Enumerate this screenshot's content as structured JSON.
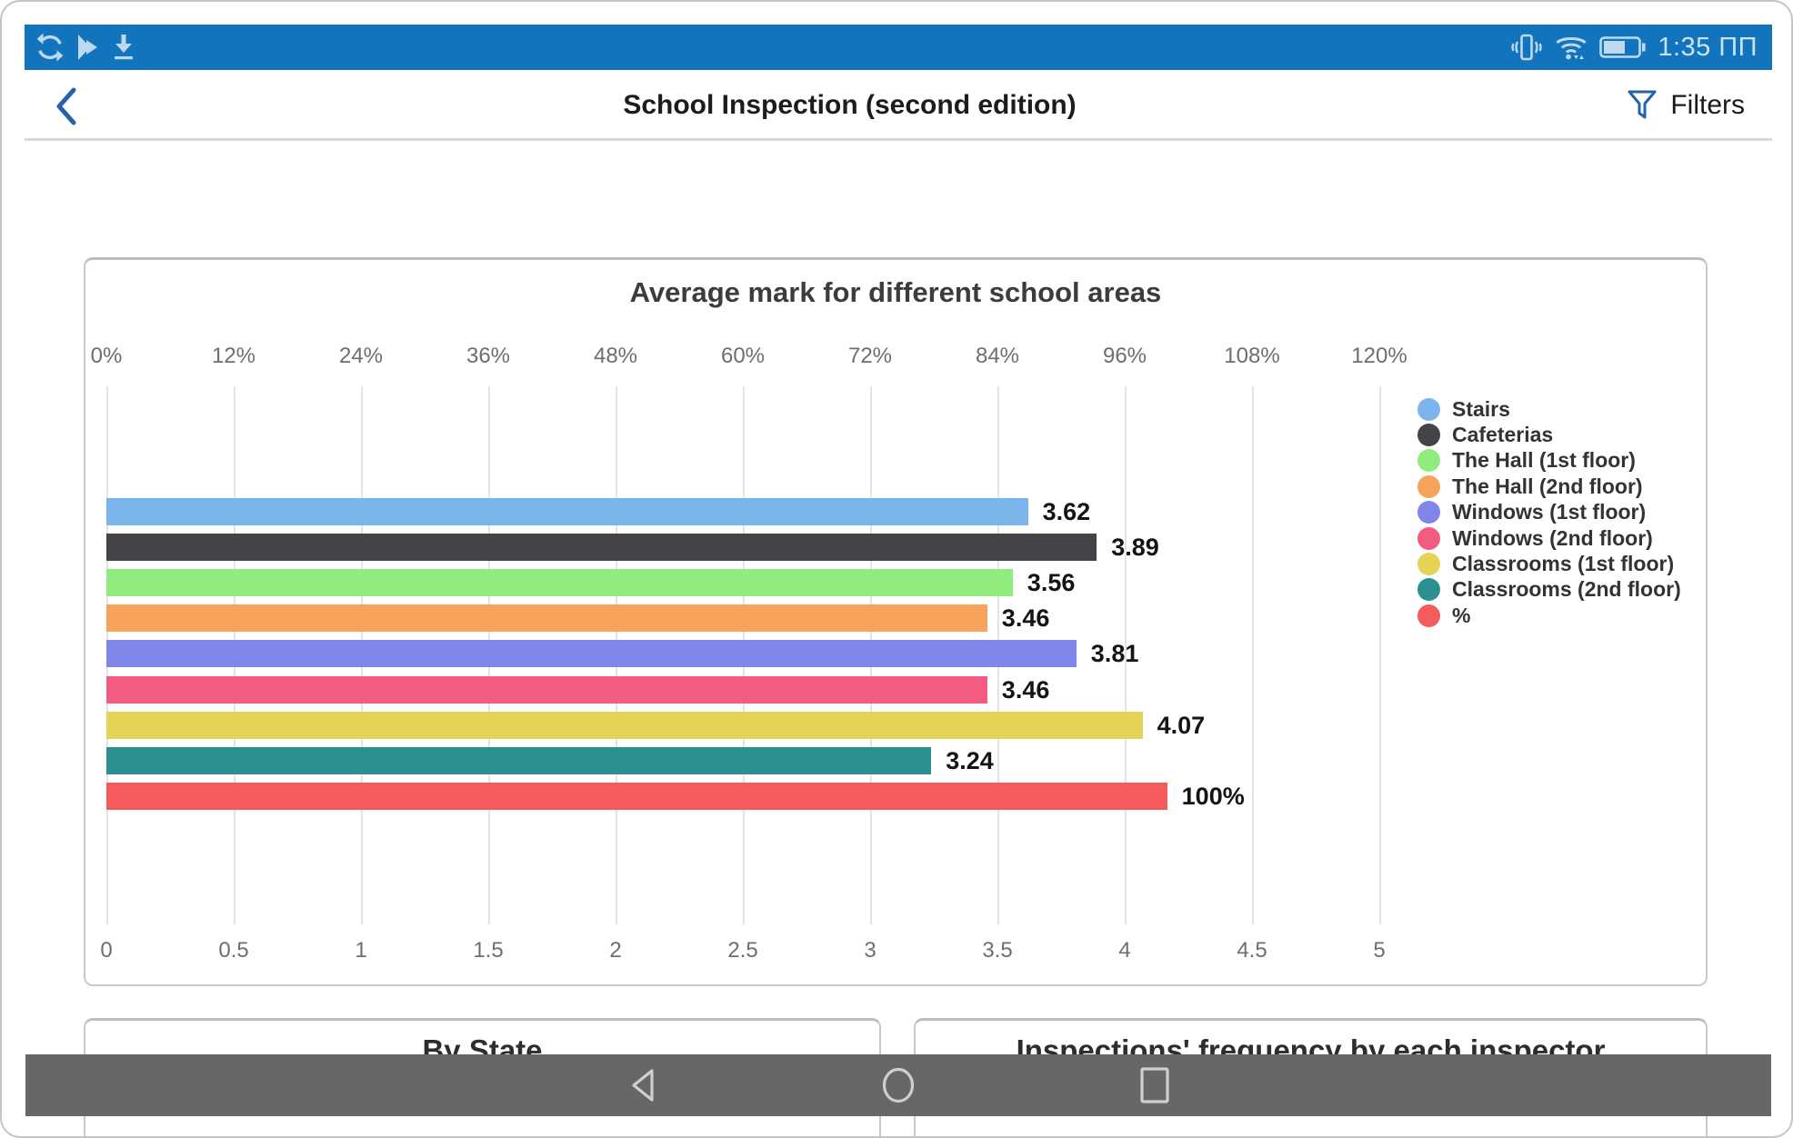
{
  "status_bar": {
    "time": "1:35 ПП",
    "bg_color": "#1174bd",
    "icon_color": "#bcd9ee",
    "left_icons": [
      "sync-icon",
      "play-store-icon",
      "download-icon"
    ],
    "right_icons": [
      "vibrate-icon",
      "wifi-icon",
      "battery-icon"
    ]
  },
  "header": {
    "title": "School Inspection (second edition)",
    "filters_label": "Filters",
    "accent_color": "#2462ab",
    "icons": [
      "back-chevron-icon",
      "filter-funnel-icon"
    ]
  },
  "chart_data": {
    "type": "bar",
    "orientation": "horizontal",
    "title": "Average mark for different school areas",
    "grid": true,
    "legend_position": "right",
    "top_axis": {
      "unit": "percent",
      "range": [
        0,
        120
      ],
      "ticks": [
        "0%",
        "12%",
        "24%",
        "36%",
        "48%",
        "60%",
        "72%",
        "84%",
        "96%",
        "108%",
        "120%"
      ]
    },
    "bottom_axis": {
      "unit": "mark",
      "range": [
        0,
        5
      ],
      "ticks": [
        "0",
        "0.5",
        "1",
        "1.5",
        "2",
        "2.5",
        "3",
        "3.5",
        "4",
        "4.5",
        "5"
      ]
    },
    "series": [
      {
        "name": "Stairs",
        "value": 3.62,
        "display": "3.62",
        "color": "#7cb5ec",
        "scale": "mark"
      },
      {
        "name": "Cafeterias",
        "value": 3.89,
        "display": "3.89",
        "color": "#434348",
        "scale": "mark"
      },
      {
        "name": "The Hall (1st floor)",
        "value": 3.56,
        "display": "3.56",
        "color": "#90ed7d",
        "scale": "mark"
      },
      {
        "name": "The Hall (2nd floor)",
        "value": 3.46,
        "display": "3.46",
        "color": "#f7a35c",
        "scale": "mark"
      },
      {
        "name": "Windows (1st floor)",
        "value": 3.81,
        "display": "3.81",
        "color": "#8085e9",
        "scale": "mark"
      },
      {
        "name": "Windows (2nd floor)",
        "value": 3.46,
        "display": "3.46",
        "color": "#f15c80",
        "scale": "mark"
      },
      {
        "name": "Classrooms (1st floor)",
        "value": 4.07,
        "display": "4.07",
        "color": "#e4d354",
        "scale": "mark"
      },
      {
        "name": "Classrooms (2nd floor)",
        "value": 3.24,
        "display": "3.24",
        "color": "#2b908f",
        "scale": "mark"
      },
      {
        "name": "%",
        "value": 100,
        "display": "100%",
        "color": "#f45b5b",
        "scale": "percent"
      }
    ]
  },
  "lower_cards": [
    {
      "title": "By State"
    },
    {
      "title": "Inspections' frequency by each inspector"
    }
  ],
  "nav_bar": {
    "bg_color": "#676767",
    "icons": [
      "back-triangle-icon",
      "home-circle-icon",
      "recents-square-icon"
    ]
  }
}
